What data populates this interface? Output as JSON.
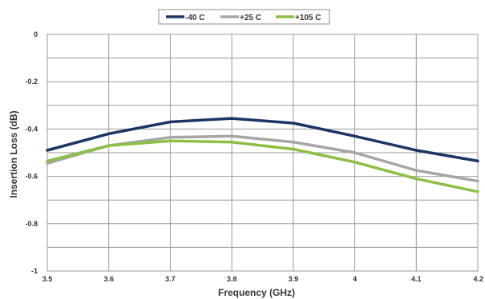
{
  "chart_data": {
    "type": "line",
    "title": "",
    "xlabel": "Frequency (GHz)",
    "ylabel": "Insertion Loss (dB)",
    "x": [
      3.5,
      3.6,
      3.7,
      3.8,
      3.9,
      4.0,
      4.1,
      4.2
    ],
    "xticks": [
      "3.5",
      "3.6",
      "3.7",
      "3.8",
      "3.9",
      "4",
      "4.1",
      "4.2"
    ],
    "yticks": [
      "0",
      "-0.2",
      "-0.4",
      "-0.6",
      "-0.8",
      "-1"
    ],
    "xlim": [
      3.5,
      4.2
    ],
    "ylim": [
      -1,
      0
    ],
    "grid": true,
    "legend_position": "top-center",
    "series": [
      {
        "name": "-40 C",
        "color": "#1b3564",
        "values": [
          -0.49,
          -0.42,
          -0.37,
          -0.355,
          -0.375,
          -0.43,
          -0.49,
          -0.535
        ]
      },
      {
        "name": "+25 C",
        "color": "#a6a6a6",
        "values": [
          -0.545,
          -0.47,
          -0.435,
          -0.43,
          -0.455,
          -0.5,
          -0.575,
          -0.62
        ]
      },
      {
        "name": "+105 C",
        "color": "#8dbf45",
        "values": [
          -0.535,
          -0.47,
          -0.45,
          -0.455,
          -0.485,
          -0.54,
          -0.61,
          -0.665
        ]
      }
    ]
  }
}
